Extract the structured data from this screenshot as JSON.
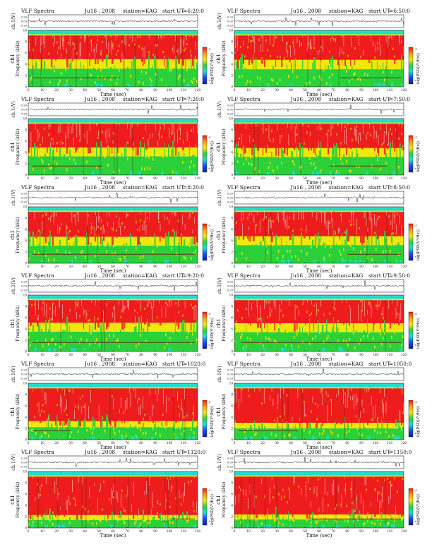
{
  "page": {
    "title_prefix": "VLF Spectra",
    "date": "Ju16 , 2008",
    "station": "station=KAG",
    "start_label": "start  UT"
  },
  "colors": {
    "red": "#ee1c1c",
    "orange": "#f7a21a",
    "yellow": "#f2e60f",
    "green": "#2bd13b",
    "cyan": "#22dccc",
    "blue": "#1c4ff0",
    "navy": "#0a1ea8",
    "white": "#ffffff",
    "trace": "#222222"
  },
  "chart_data": [
    {
      "type": "heatmap",
      "title": "VLF Spectra",
      "date": "Ju16 , 2008",
      "station": "station=KAG",
      "start_ut": "=6:20:0",
      "top_panel": {
        "ylabel": "ch.1(V)",
        "ylim": [
          -0.2,
          0.2
        ],
        "ticks": [
          "0.20",
          "0.00",
          "-0.20"
        ]
      },
      "spectrogram": {
        "ylabel": "Frequency (kHz)",
        "ch_label": "ch1",
        "ylim": [
          0,
          10
        ],
        "yticks": [
          0,
          2,
          4,
          6,
          8,
          10
        ],
        "xlabel": "Time (sec)",
        "xlim": [
          0,
          120
        ],
        "xticks": [
          0,
          10,
          20,
          30,
          40,
          50,
          60,
          70,
          80,
          90,
          100,
          110,
          120
        ],
        "band_khz": {
          "red": [
            4.9,
            9.1
          ],
          "yellow": [
            3.2,
            4.9
          ],
          "green": [
            0.0,
            3.2
          ],
          "cyan_top": [
            9.3,
            10.0
          ]
        },
        "marker_khz": 1.6,
        "marker_time_range": [
          3,
          65
        ]
      },
      "colorbar": {
        "label": "log(PSD(V²/Hz))",
        "ticks": [
          "-4",
          "-6"
        ]
      }
    },
    {
      "type": "heatmap",
      "title": "VLF Spectra",
      "date": "Ju16 , 2008",
      "station": "station=KAG",
      "start_ut": "=6:50:0",
      "top_panel": {
        "ylabel": "ch.1(V)",
        "ylim": [
          -0.2,
          0.2
        ],
        "ticks": [
          "0.20",
          "0.00",
          "-0.20"
        ]
      },
      "spectrogram": {
        "ylabel": "Frequency (kHz)",
        "ch_label": "ch1",
        "ylim": [
          0,
          10
        ],
        "yticks": [
          0,
          2,
          4,
          6,
          8,
          10
        ],
        "xlabel": "Time (sec)",
        "xlim": [
          0,
          120
        ],
        "xticks": [
          0,
          10,
          20,
          30,
          40,
          50,
          60,
          70,
          80,
          90,
          100,
          110,
          120
        ],
        "band_khz": {
          "red": [
            4.8,
            9.1
          ],
          "yellow": [
            3.1,
            4.8
          ],
          "green": [
            0.0,
            3.1
          ],
          "cyan_top": [
            9.3,
            10.0
          ]
        },
        "marker_khz": 1.6,
        "marker_time_range": [
          75,
          118
        ]
      },
      "colorbar": {
        "label": "log(PSD(V²/Hz))",
        "ticks": [
          "-4",
          "-6"
        ]
      }
    },
    {
      "type": "heatmap",
      "title": "VLF Spectra",
      "date": "Ju16 , 2008",
      "station": "station=KAG",
      "start_ut": "=7:20:0",
      "top_panel": {
        "ylabel": "ch.1(V)",
        "ylim": [
          -0.2,
          0.2
        ],
        "ticks": [
          "0.20",
          "0.00",
          "-0.20"
        ]
      },
      "spectrogram": {
        "ylabel": "Frequency (kHz)",
        "ch_label": "ch1",
        "ylim": [
          0,
          10
        ],
        "yticks": [
          0,
          2,
          4,
          6,
          8,
          10
        ],
        "xlabel": "Time (sec)",
        "xlim": [
          0,
          120
        ],
        "xticks": [
          0,
          10,
          20,
          30,
          40,
          50,
          60,
          70,
          80,
          90,
          100,
          110,
          120
        ],
        "band_khz": {
          "red": [
            4.9,
            9.1
          ],
          "yellow": [
            3.3,
            4.9
          ],
          "green": [
            0.0,
            3.3
          ],
          "cyan_top": [
            9.3,
            10.0
          ]
        },
        "marker_khz": 1.6,
        "marker_time_range": [
          3,
          52
        ]
      },
      "colorbar": {
        "label": "log(PSD(V²/Hz))",
        "ticks": [
          "-4",
          "-6"
        ]
      }
    },
    {
      "type": "heatmap",
      "title": "VLF Spectra",
      "date": "Ju16 , 2008",
      "station": "station=KAG",
      "start_ut": "=7:50:0",
      "top_panel": {
        "ylabel": "ch.1(V)",
        "ylim": [
          -0.2,
          0.2
        ],
        "ticks": [
          "0.20",
          "0.00",
          "-0.20"
        ]
      },
      "spectrogram": {
        "ylabel": "Frequency (kHz)",
        "ch_label": "ch1",
        "ylim": [
          0,
          10
        ],
        "yticks": [
          0,
          2,
          4,
          6,
          8,
          10
        ],
        "xlabel": "Time (sec)",
        "xlim": [
          0,
          120
        ],
        "xticks": [
          0,
          10,
          20,
          30,
          40,
          50,
          60,
          70,
          80,
          90,
          100,
          110,
          120
        ],
        "band_khz": {
          "red": [
            4.8,
            9.1
          ],
          "yellow": [
            3.2,
            4.8
          ],
          "green": [
            0.0,
            3.2
          ],
          "cyan_top": [
            9.3,
            10.0
          ]
        },
        "marker_khz": 1.6,
        "marker_time_range": [
          68,
          108
        ]
      },
      "colorbar": {
        "label": "log(PSD(V²/Hz))",
        "ticks": [
          "-4",
          "-6"
        ]
      }
    },
    {
      "type": "heatmap",
      "title": "VLF Spectra",
      "date": "Ju16 , 2008",
      "station": "station=KAG",
      "start_ut": "=8:20:0",
      "top_panel": {
        "ylabel": "ch.1(V)",
        "ylim": [
          -0.2,
          0.2
        ],
        "ticks": [
          "0.20",
          "0.00",
          "-0.20"
        ]
      },
      "spectrogram": {
        "ylabel": "Frequency (kHz)",
        "ch_label": "ch1",
        "ylim": [
          0,
          10
        ],
        "yticks": [
          0,
          2,
          4,
          6,
          8,
          10
        ],
        "xlabel": "Time (sec)",
        "xlim": [
          0,
          120
        ],
        "xticks": [
          0,
          10,
          20,
          30,
          40,
          50,
          60,
          70,
          80,
          90,
          100,
          110,
          120
        ],
        "band_khz": {
          "red": [
            4.7,
            9.1
          ],
          "yellow": [
            3.1,
            4.7
          ],
          "green": [
            0.0,
            3.1
          ],
          "cyan_top": [
            9.3,
            10.0
          ]
        },
        "marker_khz": 1.6,
        "marker_time_range": [
          3,
          118
        ]
      },
      "colorbar": {
        "label": "log(PSD(V²/Hz))",
        "ticks": [
          "-4",
          "-6"
        ]
      }
    },
    {
      "type": "heatmap",
      "title": "VLF Spectra",
      "date": "Ju16 , 2008",
      "station": "station=KAG",
      "start_ut": "=8:50:0",
      "top_panel": {
        "ylabel": "ch.1(V)",
        "ylim": [
          -0.2,
          0.2
        ],
        "ticks": [
          "0.20",
          "0.00",
          "-0.20"
        ]
      },
      "spectrogram": {
        "ylabel": "Frequency (kHz)",
        "ch_label": "ch1",
        "ylim": [
          0,
          10
        ],
        "yticks": [
          0,
          2,
          4,
          6,
          8,
          10
        ],
        "xlabel": "Time (sec)",
        "xlim": [
          0,
          120
        ],
        "xticks": [
          0,
          10,
          20,
          30,
          40,
          50,
          60,
          70,
          80,
          90,
          100,
          110,
          120
        ],
        "band_khz": {
          "red": [
            4.8,
            9.1
          ],
          "yellow": [
            3.2,
            4.8
          ],
          "green": [
            0.0,
            3.2
          ],
          "cyan_top": [
            9.3,
            10.0
          ]
        },
        "marker_khz": 1.6,
        "marker_time_range": [
          80,
          118
        ]
      },
      "colorbar": {
        "label": "log(PSD(V²/Hz))",
        "ticks": [
          "-4",
          "-6"
        ]
      }
    },
    {
      "type": "heatmap",
      "title": "VLF Spectra",
      "date": "Ju16 , 2008",
      "station": "station=KAG",
      "start_ut": "=9:20:0",
      "top_panel": {
        "ylabel": "ch.1(V)",
        "ylim": [
          -0.2,
          0.2
        ],
        "ticks": [
          "0.20",
          "0.00",
          "-0.20"
        ]
      },
      "spectrogram": {
        "ylabel": "Frequency (kHz)",
        "ch_label": "ch1",
        "ylim": [
          0,
          10
        ],
        "yticks": [
          0,
          2,
          4,
          6,
          8,
          10
        ],
        "xlabel": "Time (sec)",
        "xlim": [
          0,
          120
        ],
        "xticks": [
          0,
          10,
          20,
          30,
          40,
          50,
          60,
          70,
          80,
          90,
          100,
          110,
          120
        ],
        "band_khz": {
          "red": [
            5.1,
            9.1
          ],
          "yellow": [
            3.5,
            5.1
          ],
          "green": [
            0.0,
            3.5
          ],
          "cyan_top": [
            9.3,
            10.0
          ]
        },
        "marker_khz": 1.6,
        "marker_time_range": [
          3,
          118
        ]
      },
      "colorbar": {
        "label": "log(PSD(V²/Hz))",
        "ticks": [
          "-4",
          "-6"
        ]
      }
    },
    {
      "type": "heatmap",
      "title": "VLF Spectra",
      "date": "Ju16 , 2008",
      "station": "station=KAG",
      "start_ut": "=9:50:0",
      "top_panel": {
        "ylabel": "ch.1(V)",
        "ylim": [
          -0.2,
          0.2
        ],
        "ticks": [
          "0.20",
          "0.00",
          "-0.20"
        ]
      },
      "spectrogram": {
        "ylabel": "Frequency (kHz)",
        "ch_label": "ch1",
        "ylim": [
          0,
          10
        ],
        "yticks": [
          0,
          2,
          4,
          6,
          8,
          10
        ],
        "xlabel": "Time (sec)",
        "xlim": [
          0,
          120
        ],
        "xticks": [
          0,
          10,
          20,
          30,
          40,
          50,
          60,
          70,
          80,
          90,
          100,
          110,
          120
        ],
        "band_khz": {
          "red": [
            5.0,
            9.1
          ],
          "yellow": [
            3.4,
            5.0
          ],
          "green": [
            0.0,
            3.4
          ],
          "cyan_top": [
            9.3,
            10.0
          ]
        },
        "marker_khz": 1.6,
        "marker_time_range": [
          5,
          118
        ]
      },
      "colorbar": {
        "label": "log(PSD(V²/Hz))",
        "ticks": [
          "-4",
          "-6"
        ]
      }
    },
    {
      "type": "heatmap",
      "title": "VLF Spectra",
      "date": "Ju16 , 2008",
      "station": "station=KAG",
      "start_ut": "=1020:0",
      "top_panel": {
        "ylabel": "ch.1(V)",
        "ylim": [
          -0.2,
          0.2
        ],
        "ticks": [
          "0.20",
          "0.00",
          "-0.20"
        ]
      },
      "spectrogram": {
        "ylabel": "Frequency (kHz)",
        "ch_label": "ch1",
        "ylim": [
          0,
          10
        ],
        "yticks": [
          0,
          2,
          4,
          6,
          8,
          10
        ],
        "xlabel": "Time (sec)",
        "xlim": [
          0,
          120
        ],
        "xticks": [
          0,
          10,
          20,
          30,
          40,
          50,
          60,
          70,
          80,
          90,
          100,
          110,
          120
        ],
        "band_khz": {
          "red": [
            3.3,
            9.1
          ],
          "yellow": [
            2.2,
            3.3
          ],
          "green": [
            0.0,
            2.2
          ],
          "cyan_top": [
            9.3,
            10.0
          ]
        },
        "marker_khz": 1.6,
        "marker_time_range": [
          3,
          30
        ]
      },
      "colorbar": {
        "label": "log(PSD(V²/Hz))",
        "ticks": [
          "-4",
          "-6"
        ]
      }
    },
    {
      "type": "heatmap",
      "title": "VLF Spectra",
      "date": "Ju16 , 2008",
      "station": "station=KAG",
      "start_ut": "=1050:0",
      "top_panel": {
        "ylabel": "ch.1(V)",
        "ylim": [
          -0.2,
          0.2
        ],
        "ticks": [
          "0.20",
          "0.00",
          "-0.20"
        ]
      },
      "spectrogram": {
        "ylabel": "Frequency (kHz)",
        "ch_label": "ch1",
        "ylim": [
          0,
          10
        ],
        "yticks": [
          0,
          2,
          4,
          6,
          8,
          10
        ],
        "xlabel": "Time (sec)",
        "xlim": [
          0,
          120
        ],
        "xticks": [
          0,
          10,
          20,
          30,
          40,
          50,
          60,
          70,
          80,
          90,
          100,
          110,
          120
        ],
        "band_khz": {
          "red": [
            3.0,
            9.1
          ],
          "yellow": [
            2.0,
            3.0
          ],
          "green": [
            0.0,
            2.0
          ],
          "cyan_top": [
            9.3,
            10.0
          ]
        },
        "marker_khz": 1.6,
        "marker_time_range": [
          3,
          45
        ]
      },
      "colorbar": {
        "label": "log(PSD(V²/Hz))",
        "ticks": [
          "-4",
          "-6"
        ]
      }
    },
    {
      "type": "heatmap",
      "title": "VLF Spectra",
      "date": "Ju16 , 2008",
      "station": "station=KAG",
      "start_ut": "=1120:0",
      "top_panel": {
        "ylabel": "ch.1(V)",
        "ylim": [
          -0.2,
          0.2
        ],
        "ticks": [
          "0.20",
          "0.00",
          "-0.20"
        ]
      },
      "spectrogram": {
        "ylabel": "Frequency (kHz)",
        "ch_label": "ch1",
        "ylim": [
          0,
          10
        ],
        "yticks": [
          0,
          2,
          4,
          6,
          8,
          10
        ],
        "xlabel": "Time (sec)",
        "xlim": [
          0,
          120
        ],
        "xticks": [
          0,
          10,
          20,
          30,
          40,
          50,
          60,
          70,
          80,
          90,
          100,
          110,
          120
        ],
        "band_khz": {
          "red": [
            2.3,
            9.1
          ],
          "yellow": [
            1.4,
            2.3
          ],
          "green": [
            0.0,
            1.4
          ],
          "cyan_top": [
            9.3,
            10.0
          ]
        },
        "marker_khz": 1.6,
        "marker_time_range": [
          100,
          118
        ]
      },
      "colorbar": {
        "label": "log(PSD(V²/Hz))",
        "ticks": [
          "-4",
          "-6"
        ]
      }
    },
    {
      "type": "heatmap",
      "title": "VLF Spectra",
      "date": "Ju16 , 2008",
      "station": "station=KAG",
      "start_ut": "=1150:0",
      "top_panel": {
        "ylabel": "ch.1(V)",
        "ylim": [
          -0.2,
          0.2
        ],
        "ticks": [
          "0.20",
          "0.00",
          "-0.20"
        ]
      },
      "spectrogram": {
        "ylabel": "Frequency (kHz)",
        "ch_label": "ch1",
        "ylim": [
          0,
          10
        ],
        "yticks": [
          0,
          2,
          4,
          6,
          8,
          10
        ],
        "xlabel": "Time (sec)",
        "xlim": [
          0,
          120
        ],
        "xticks": [
          0,
          10,
          20,
          30,
          40,
          50,
          60,
          70,
          80,
          90,
          100,
          110,
          120
        ],
        "band_khz": {
          "red": [
            2.4,
            9.1
          ],
          "yellow": [
            1.5,
            2.4
          ],
          "green": [
            0.0,
            1.5
          ],
          "cyan_top": [
            9.3,
            10.0
          ]
        },
        "marker_khz": 1.6,
        "marker_time_range": [
          55,
          118
        ]
      },
      "colorbar": {
        "label": "log(PSD(V²/Hz))",
        "ticks": [
          "-4",
          "-6"
        ]
      }
    }
  ]
}
